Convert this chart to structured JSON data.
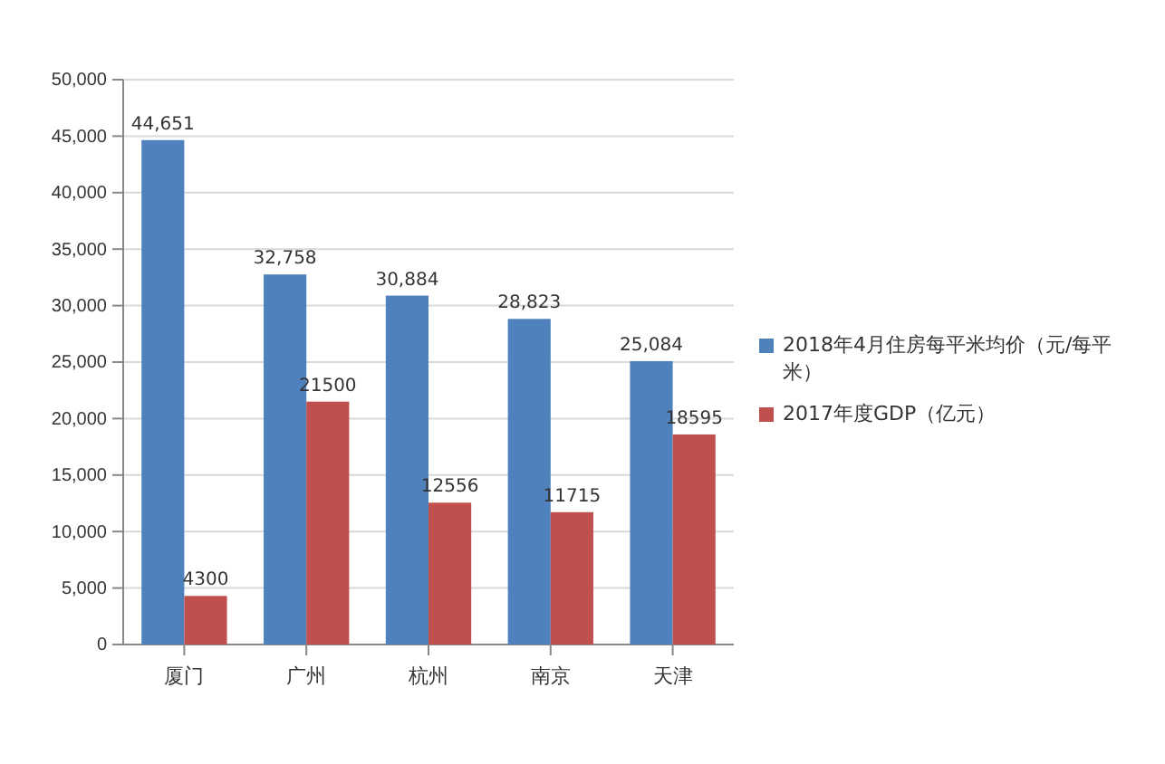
{
  "chart_data": {
    "type": "bar",
    "categories": [
      "厦门",
      "广州",
      "杭州",
      "南京",
      "天津"
    ],
    "series": [
      {
        "name": "2018年4月住房每平米均价（元/每平米）",
        "color": "#4f81bd",
        "values": [
          44651,
          32758,
          30884,
          28823,
          25084
        ],
        "value_labels": [
          "44,651",
          "32,758",
          "30,884",
          "28,823",
          "25,084"
        ]
      },
      {
        "name": "2017年度GDP（亿元）",
        "color": "#c0504d",
        "values": [
          4300,
          21500,
          12556,
          11715,
          18595
        ],
        "value_labels": [
          "4300",
          "21500",
          "12556",
          "11715",
          "18595"
        ]
      }
    ],
    "ylim": [
      0,
      50000
    ],
    "yticks": [
      {
        "value": 0,
        "label": "0"
      },
      {
        "value": 5000,
        "label": "5,000"
      },
      {
        "value": 10000,
        "label": "10,000"
      },
      {
        "value": 15000,
        "label": "15,000"
      },
      {
        "value": 20000,
        "label": "20,000"
      },
      {
        "value": 25000,
        "label": "25,000"
      },
      {
        "value": 30000,
        "label": "30,000"
      },
      {
        "value": 35000,
        "label": "35,000"
      },
      {
        "value": 40000,
        "label": "40,000"
      },
      {
        "value": 45000,
        "label": "45,000"
      },
      {
        "value": 50000,
        "label": "50,000"
      }
    ],
    "grid": "y",
    "legend": "right"
  }
}
